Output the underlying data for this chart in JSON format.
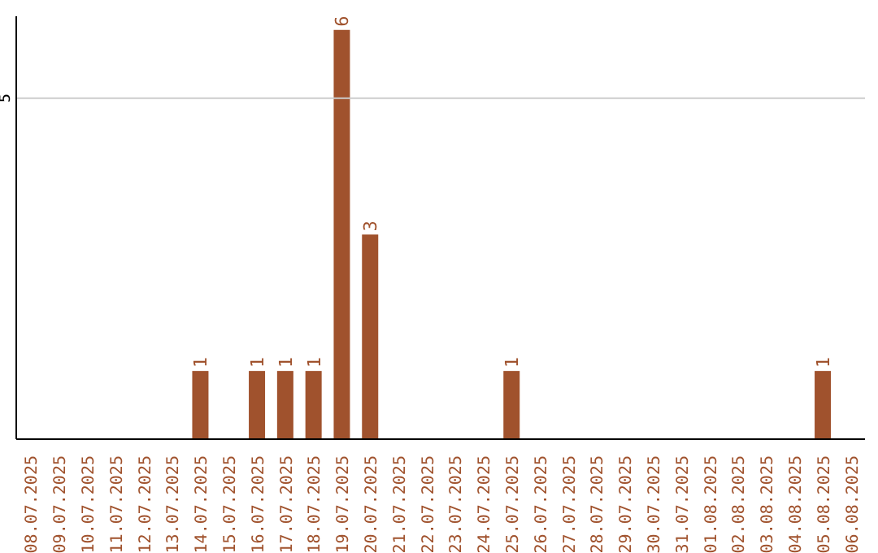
{
  "chart_data": {
    "type": "bar",
    "categories": [
      "08.07.2025",
      "09.07.2025",
      "10.07.2025",
      "11.07.2025",
      "12.07.2025",
      "13.07.2025",
      "14.07.2025",
      "15.07.2025",
      "16.07.2025",
      "17.07.2025",
      "18.07.2025",
      "19.07.2025",
      "20.07.2025",
      "21.07.2025",
      "22.07.2025",
      "23.07.2025",
      "24.07.2025",
      "25.07.2025",
      "26.07.2025",
      "27.07.2025",
      "28.07.2025",
      "29.07.2025",
      "30.07.2025",
      "31.07.2025",
      "01.08.2025",
      "02.08.2025",
      "03.08.2025",
      "04.08.2025",
      "05.08.2025",
      "06.08.2025"
    ],
    "values": [
      0,
      0,
      0,
      0,
      0,
      0,
      1,
      0,
      1,
      1,
      1,
      6,
      3,
      0,
      0,
      0,
      0,
      1,
      0,
      0,
      0,
      0,
      0,
      0,
      0,
      0,
      0,
      0,
      1,
      0
    ],
    "value_labels": [
      null,
      null,
      null,
      null,
      null,
      null,
      "1",
      null,
      "1",
      "1",
      "1",
      "6",
      "3",
      null,
      null,
      null,
      null,
      "1",
      null,
      null,
      null,
      null,
      null,
      null,
      null,
      null,
      null,
      null,
      "1",
      null
    ],
    "color": "#a0522d",
    "ylim": [
      0,
      6.2
    ],
    "yticks": [
      5
    ],
    "grid": "y"
  }
}
